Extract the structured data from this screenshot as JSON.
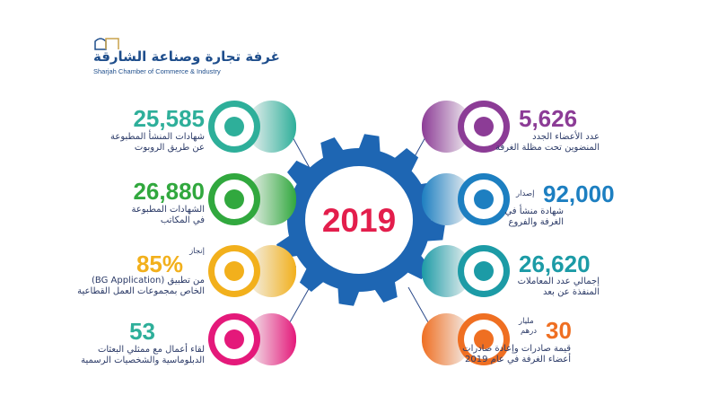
{
  "logo": {
    "arabic": "غرفة تجارة وصناعة الشارقة",
    "english": "Sharjah Chamber of Commerce & Industry"
  },
  "center": {
    "year": "2019"
  },
  "items": [
    {
      "number": "25,585",
      "line1": "شهادات المنشأ المطبوعة",
      "line2": "عن طريق الروبوت",
      "color": "#2eaf9a",
      "icon": "robot-icon"
    },
    {
      "number": "26,880",
      "line1": "الشهادات المطبوعة",
      "line2": "في المكاتب",
      "color": "#31a83e",
      "icon": "printer-icon"
    },
    {
      "prefix": "إنجاز",
      "number": "85%",
      "line1": "من تطبيق (BG Application)",
      "line2": "الخاص بمجموعات العمل القطاعية",
      "color": "#f2b01c",
      "icon": "gear-phone-icon"
    },
    {
      "number": "53",
      "line1": "لقاء أعمال مع ممثلي البعثات",
      "line2": "الدبلوماسية والشخصيات الرسمية",
      "color": "#e4197a",
      "icon": "handshake-icon"
    },
    {
      "number": "5,626",
      "line1": "عدد الأعضاء الجدد",
      "line2": "المنضوين تحت مظلة الغرفة",
      "color": "#8c3c96",
      "icon": "certificate-icon"
    },
    {
      "prefix": "إصدار",
      "number": "92,000",
      "line1": "شهادة منشأ في",
      "line2": "الغرفة والفروع",
      "color": "#1d7fc1",
      "icon": "document-icon"
    },
    {
      "number": "26,620",
      "line1": "إجمالي عدد المعاملات",
      "line2": "المنفذة عن بعد",
      "color": "#1c9ba6",
      "icon": "monitor-icon"
    },
    {
      "prefix_top": "مليار",
      "prefix_bottom": "درهم",
      "number": "30",
      "line1": "قيمة صادرات وإعادة صادرات",
      "line2": "أعضاء الغرفة في عام 2019",
      "color": "#ef6f22",
      "icon": "transfer-icon"
    }
  ]
}
